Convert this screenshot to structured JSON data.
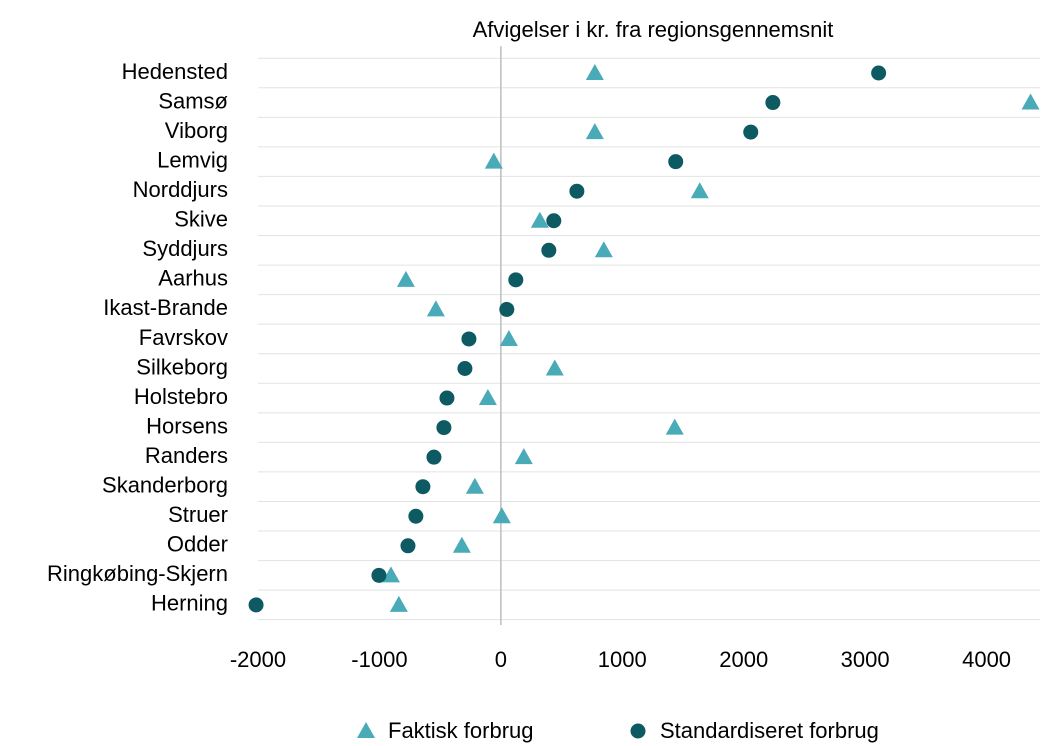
{
  "chart_data": {
    "type": "dot",
    "title": "Afvigelser i kr. fra regionsgennemsnit",
    "categories": [
      "Hedensted",
      "Samsø",
      "Viborg",
      "Lemvig",
      "Norddjurs",
      "Skive",
      "Syddjurs",
      "Aarhus",
      "Ikast-Brande",
      "Favrskov",
      "Silkeborg",
      "Holstebro",
      "Horsens",
      "Randers",
      "Skanderborg",
      "Struer",
      "Odder",
      "Ringkøbing-Skjern",
      "Herning"
    ],
    "series": [
      {
        "name": "Faktisk forbrug",
        "color": "#4aabb8",
        "marker": "triangle",
        "values": [
          774,
          4362,
          774,
          -58,
          1638,
          321,
          848,
          -782,
          -535,
          66,
          444,
          -107,
          1432,
          189,
          -214,
          8,
          -321,
          -905,
          -840
        ]
      },
      {
        "name": "Standardiseret forbrug",
        "color": "#0e5a63",
        "marker": "circle",
        "values": [
          3111,
          2240,
          2058,
          1440,
          626,
          436,
          395,
          123,
          49,
          -263,
          -296,
          -444,
          -469,
          -551,
          -642,
          -700,
          -765,
          -1004,
          -2016
        ]
      }
    ],
    "xlim": [
      -2000,
      4440
    ],
    "xticks": [
      -2000,
      -1000,
      0,
      1000,
      2000,
      3000,
      4000
    ],
    "grid": true,
    "legend": "bottom"
  }
}
